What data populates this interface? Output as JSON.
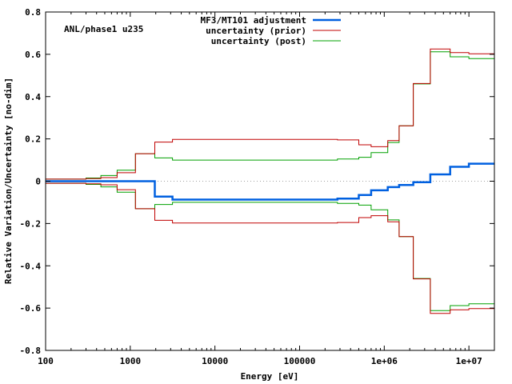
{
  "chart_data": {
    "type": "line",
    "subtype": "step",
    "annotation": "ANL/phase1 u235",
    "xlabel": "Energy [eV]",
    "ylabel": "Relative Variation/Uncertainty [no-dim]",
    "xscale": "log",
    "xlim": [
      100,
      20000000
    ],
    "ylim": [
      -0.8,
      0.8
    ],
    "x_ticks": [
      {
        "value": 100,
        "label": "100"
      },
      {
        "value": 1000,
        "label": "1000"
      },
      {
        "value": 10000,
        "label": "10000"
      },
      {
        "value": 100000,
        "label": "100000"
      },
      {
        "value": 1000000,
        "label": "1e+06"
      },
      {
        "value": 10000000,
        "label": "1e+07"
      }
    ],
    "y_ticks": [
      {
        "value": 0.8,
        "label": "0.8"
      },
      {
        "value": 0.6,
        "label": "0.6"
      },
      {
        "value": 0.4,
        "label": "0.4"
      },
      {
        "value": 0.2,
        "label": "0.2"
      },
      {
        "value": 0,
        "label": "0"
      },
      {
        "value": -0.2,
        "label": "-0.2"
      },
      {
        "value": -0.4,
        "label": "-0.4"
      },
      {
        "value": -0.6,
        "label": "-0.6"
      },
      {
        "value": -0.8,
        "label": "-0.8"
      }
    ],
    "zero_line": true,
    "legend_position": "top-center",
    "bin_edges": [
      100,
      300,
      450,
      700,
      1150,
      1950,
      3150,
      500000,
      700000,
      1100000,
      1500000,
      2200000,
      3500000,
      6000000,
      10000000,
      20000000
    ],
    "series": [
      {
        "name": "MF3/MT101 adjustment",
        "color": "#0060e0",
        "values": [
          0.0,
          0.0,
          0.0,
          0.0,
          0.0,
          -0.073,
          -0.087,
          -0.065,
          -0.043,
          -0.028,
          -0.018,
          -0.005,
          0.032,
          0.068,
          0.083
        ],
        "overrides": [
          {
            "from": 280000,
            "to": 500000,
            "value": -0.082
          }
        ],
        "mirror": false
      },
      {
        "name": "uncertainty (prior)",
        "color": "#c00000",
        "values": [
          0.01,
          0.012,
          0.017,
          0.04,
          0.13,
          0.185,
          0.198,
          0.172,
          0.163,
          0.192,
          0.262,
          0.462,
          0.625,
          0.608,
          0.602
        ],
        "overrides": [
          {
            "from": 280000,
            "to": 500000,
            "value": 0.195
          }
        ],
        "mirror": true
      },
      {
        "name": "uncertainty (post)",
        "color": "#00a000",
        "values": [
          0.01,
          0.015,
          0.027,
          0.052,
          0.13,
          0.11,
          0.1,
          0.113,
          0.135,
          0.183,
          0.262,
          0.46,
          0.612,
          0.588,
          0.58
        ],
        "overrides": [
          {
            "from": 280000,
            "to": 500000,
            "value": 0.105
          }
        ],
        "mirror": true
      }
    ]
  }
}
